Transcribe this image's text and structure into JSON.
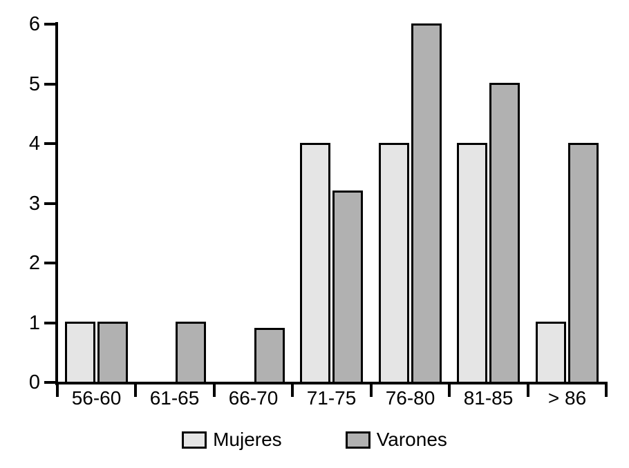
{
  "chart_data": {
    "type": "bar",
    "title": "",
    "xlabel": "",
    "ylabel": "",
    "categories": [
      "56-60",
      "61-65",
      "66-70",
      "71-75",
      "76-80",
      "81-85",
      "> 86"
    ],
    "series": [
      {
        "name": "Mujeres",
        "color": "#e5e5e5",
        "values": [
          1,
          0,
          0,
          4,
          4,
          4,
          1
        ]
      },
      {
        "name": "Varones",
        "color": "#b1b1b1",
        "values": [
          1,
          1,
          0.9,
          3.2,
          6,
          5,
          4
        ]
      }
    ],
    "ylim": [
      0,
      6
    ],
    "yticks": [
      0,
      1,
      2,
      3,
      4,
      5,
      6
    ],
    "grid": false,
    "legend_position": "bottom",
    "bar_border_color": "#000000",
    "axis_color": "#000000",
    "background_color": "#ffffff"
  }
}
